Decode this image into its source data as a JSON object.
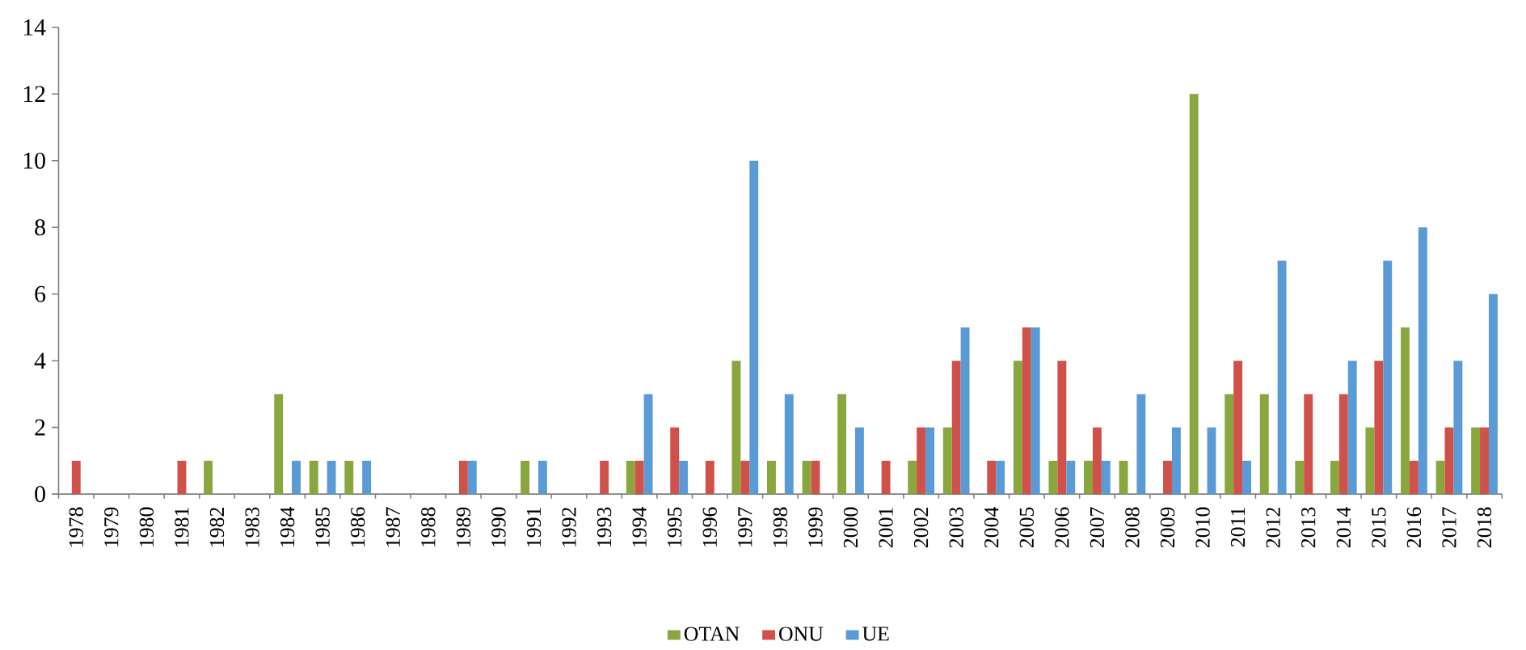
{
  "chart_data": {
    "type": "bar",
    "categories": [
      "1978",
      "1979",
      "1980",
      "1981",
      "1982",
      "1983",
      "1984",
      "1985",
      "1986",
      "1987",
      "1988",
      "1989",
      "1990",
      "1991",
      "1992",
      "1993",
      "1994",
      "1995",
      "1996",
      "1997",
      "1998",
      "1999",
      "2000",
      "2001",
      "2002",
      "2003",
      "2004",
      "2005",
      "2006",
      "2007",
      "2008",
      "2009",
      "2010",
      "2011",
      "2012",
      "2013",
      "2014",
      "2015",
      "2016",
      "2017",
      "2018"
    ],
    "series": [
      {
        "name": "OTAN",
        "color": "#8aa63e",
        "values": [
          0,
          0,
          0,
          0,
          1,
          0,
          3,
          1,
          1,
          0,
          0,
          0,
          0,
          1,
          0,
          0,
          1,
          0,
          0,
          4,
          1,
          1,
          3,
          0,
          1,
          2,
          0,
          4,
          1,
          1,
          1,
          0,
          12,
          3,
          3,
          1,
          1,
          2,
          5,
          1,
          2
        ]
      },
      {
        "name": "ONU",
        "color": "#d0504a",
        "values": [
          1,
          0,
          0,
          1,
          0,
          0,
          0,
          0,
          0,
          0,
          0,
          1,
          0,
          0,
          0,
          1,
          1,
          2,
          1,
          1,
          0,
          1,
          0,
          1,
          2,
          4,
          1,
          5,
          4,
          2,
          0,
          1,
          0,
          4,
          0,
          3,
          3,
          4,
          1,
          2,
          2
        ]
      },
      {
        "name": "UE",
        "color": "#5b9bd5",
        "values": [
          0,
          0,
          0,
          0,
          0,
          0,
          1,
          1,
          1,
          0,
          0,
          1,
          0,
          1,
          0,
          0,
          3,
          1,
          0,
          10,
          3,
          0,
          2,
          0,
          2,
          5,
          1,
          5,
          1,
          1,
          3,
          2,
          2,
          1,
          7,
          0,
          4,
          7,
          8,
          4,
          6
        ]
      }
    ],
    "ylim": [
      0,
      14
    ],
    "yticks": [
      0,
      2,
      4,
      6,
      8,
      10,
      12,
      14
    ],
    "legend": "bottom",
    "grid": false
  }
}
